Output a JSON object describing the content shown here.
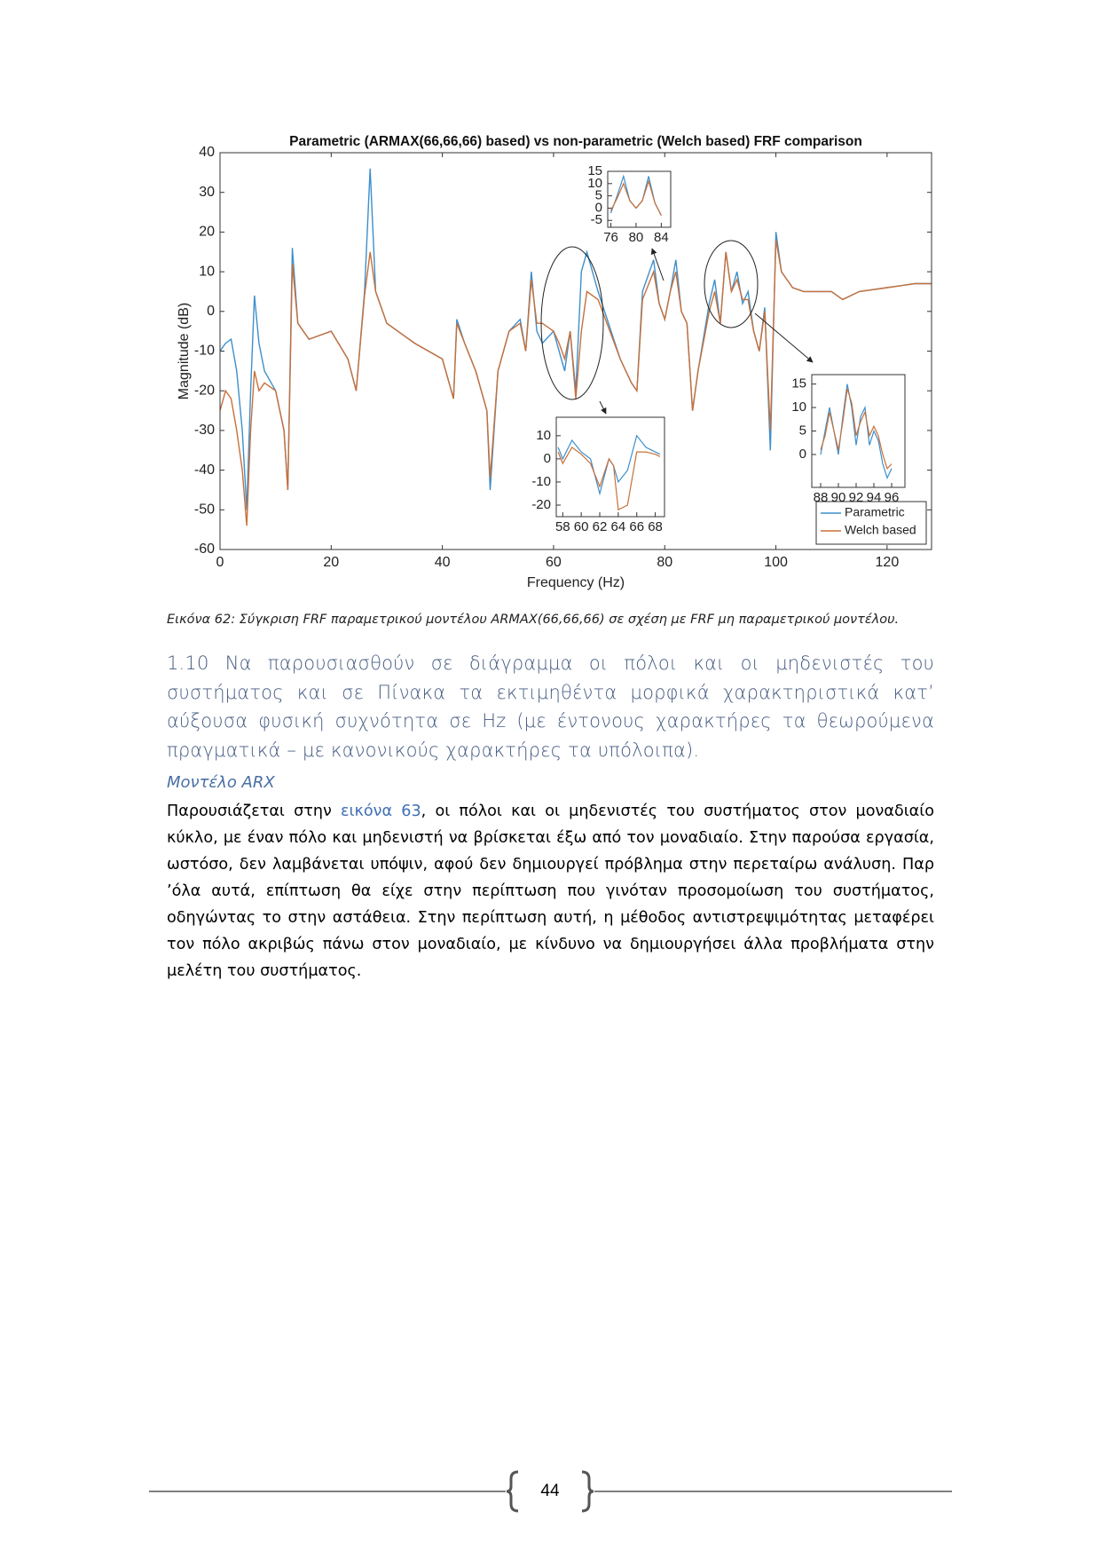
{
  "chart_data": [
    {
      "type": "line",
      "title": "Parametric (ARMAX(66,66,66) based) vs non-parametric (Welch based) FRF comparison",
      "x_label": "Frequency (Hz)",
      "y_label": "Magnitude (dB)",
      "x": [
        0,
        1,
        2,
        3,
        4,
        4.8,
        5.5,
        6.2,
        7,
        8,
        10,
        11.5,
        12.2,
        13,
        14,
        16,
        20,
        23,
        24.5,
        26,
        27,
        28,
        30,
        35,
        40,
        42,
        42.6,
        44,
        46,
        48,
        48.6,
        50,
        52,
        54,
        55,
        56,
        57,
        58,
        60,
        61,
        62,
        63,
        64,
        65,
        66,
        68,
        72,
        74,
        75,
        76,
        78,
        79,
        80,
        81,
        82,
        83,
        84,
        85,
        86,
        88,
        89,
        90,
        91,
        92,
        93,
        94,
        95,
        96,
        97,
        98,
        99,
        100,
        101,
        103,
        105,
        110,
        112,
        115,
        120,
        125,
        128
      ],
      "series": [
        {
          "name": "Parametric",
          "color": "#3d8fcc",
          "values": [
            -10,
            -8,
            -7,
            -15,
            -30,
            -50,
            -20,
            4,
            -8,
            -15,
            -20,
            -30,
            -45,
            16,
            -3,
            -7,
            -5,
            -12,
            -20,
            5,
            36,
            5,
            -3,
            -8,
            -12,
            -22,
            -2,
            -8,
            -15,
            -25,
            -45,
            -15,
            -5,
            -2,
            -10,
            10,
            -5,
            -8,
            -5,
            -10,
            -15,
            -5,
            -20,
            10,
            15,
            5,
            -12,
            -18,
            -20,
            5,
            13,
            2,
            -2,
            5,
            13,
            0,
            -3,
            -25,
            -15,
            2,
            8,
            -3,
            15,
            5,
            10,
            2,
            5,
            -5,
            -10,
            1,
            -35,
            20,
            10,
            6,
            5,
            5,
            3,
            5,
            6,
            7,
            7
          ]
        },
        {
          "name": "Welch based",
          "color": "#c8703a",
          "values": [
            -25,
            -20,
            -22,
            -30,
            -40,
            -54,
            -30,
            -15,
            -20,
            -18,
            -20,
            -30,
            -45,
            12,
            -3,
            -7,
            -5,
            -12,
            -20,
            4,
            15,
            5,
            -3,
            -8,
            -12,
            -22,
            -3,
            -8,
            -15,
            -25,
            -42,
            -15,
            -5,
            -3,
            -10,
            8,
            -3,
            -3,
            -5,
            -8,
            -12,
            -5,
            -22,
            -5,
            5,
            3,
            -12,
            -18,
            -20,
            3,
            10,
            2,
            -2,
            5,
            10,
            0,
            -3,
            -25,
            -15,
            0,
            5,
            -3,
            15,
            5,
            8,
            3,
            3,
            -5,
            -10,
            0,
            -30,
            18,
            10,
            6,
            5,
            5,
            3,
            5,
            6,
            7,
            7
          ]
        }
      ],
      "xlim": [
        0,
        128
      ],
      "ylim": [
        -60,
        40
      ],
      "xticks": [
        0,
        20,
        40,
        60,
        80,
        100,
        120
      ],
      "yticks": [
        -60,
        -50,
        -40,
        -30,
        -20,
        -10,
        0,
        10,
        20,
        30,
        40
      ],
      "legend": "lower right"
    },
    {
      "type": "line",
      "x": [
        76,
        77,
        78,
        79,
        80,
        81,
        82,
        83,
        84
      ],
      "series": [
        {
          "color": "#3d8fcc",
          "values": [
            -2,
            5,
            13,
            3,
            0,
            3,
            13,
            2,
            -3
          ]
        },
        {
          "color": "#c8703a",
          "values": [
            -1,
            4,
            10,
            3,
            0,
            3,
            11,
            2,
            -3
          ]
        }
      ],
      "xlim": [
        75.5,
        85.5
      ],
      "ylim": [
        -7.8,
        15
      ],
      "xticks": [
        76,
        80,
        84
      ],
      "yticks": [
        -5,
        0,
        5,
        10,
        15
      ]
    },
    {
      "type": "line",
      "x": [
        57.5,
        58,
        59,
        60,
        61,
        62,
        63,
        63.5,
        64,
        65,
        66,
        67,
        68,
        68.5
      ],
      "series": [
        {
          "color": "#3d8fcc",
          "values": [
            5,
            0,
            8,
            3,
            0,
            -15,
            0,
            -3,
            -10,
            -5,
            10,
            5,
            3,
            2
          ]
        },
        {
          "color": "#c8703a",
          "values": [
            3,
            -2,
            5,
            2,
            -2,
            -12,
            0,
            -3,
            -22,
            -20,
            3,
            3,
            2,
            1
          ]
        }
      ],
      "xlim": [
        57.3,
        69
      ],
      "ylim": [
        -25,
        18
      ],
      "xticks": [
        58,
        60,
        62,
        64,
        66,
        68
      ],
      "yticks": [
        -20,
        -10,
        0,
        10
      ]
    },
    {
      "type": "line",
      "x": [
        88,
        88.5,
        89,
        89.5,
        90,
        90.5,
        91,
        91.5,
        92,
        92.5,
        93,
        93.5,
        94,
        94.5,
        95,
        95.5,
        96
      ],
      "series": [
        {
          "color": "#3d8fcc",
          "values": [
            0,
            5,
            10,
            5,
            0,
            8,
            15,
            10,
            2,
            8,
            10,
            2,
            5,
            3,
            -2,
            -5,
            -3
          ]
        },
        {
          "color": "#c8703a",
          "values": [
            1,
            4,
            9,
            5,
            1,
            7,
            14,
            11,
            4,
            7,
            9,
            4,
            6,
            4,
            0,
            -3,
            -2
          ]
        }
      ],
      "xlim": [
        87,
        97.5
      ],
      "ylim": [
        -7,
        17
      ],
      "xticks": [
        88,
        90,
        92,
        94,
        96
      ],
      "yticks": [
        0,
        5,
        10,
        15
      ]
    }
  ],
  "caption": "Εικόνα 62: Σύγκριση FRF παραμετρικού μοντέλου ARMAX(66,66,66) σε σχέση με FRF μη παραμετρικού μοντέλου.",
  "heading": "1.10  Να παρουσιασθούν σε διάγραμμα οι πόλοι και οι μηδενιστές του συστήματος και σε Πίνακα τα εκτιμηθέντα μορφικά χαρακτηριστικά κατ’ αύξουσα φυσική συχνότητα σε Hz (με έντονους χαρακτήρες τα θεωρούμενα πραγματικά – με κανονικούς χαρακτήρες τα υπόλοιπα).",
  "subheading": "Μοντέλο ARX",
  "paragraph": {
    "before": "Παρουσιάζεται στην ",
    "link": "εικόνα 63",
    "after": ", οι πόλοι και οι μηδενιστές του συστήματος στον μοναδιαίο κύκλο, με έναν πόλο και μηδενιστή να βρίσκεται έξω από τον μοναδιαίο. Στην παρούσα εργασία, ωστόσο, δεν λαμβάνεται υπόψιν, αφού δεν δημιουργεί πρόβλημα στην περεταίρω ανάλυση. Παρ ’όλα αυτά, επίπτωση θα είχε στην περίπτωση που γινόταν προσομοίωση του συστήματος, οδηγώντας το στην αστάθεια. Στην περίπτωση αυτή, η μέθοδος αντιστρεψιμότητας μεταφέρει τον πόλο ακριβώς πάνω στον μοναδιαίο, με κίνδυνο να δημιουργήσει άλλα προβλήματα στην μελέτη του συστήματος."
  },
  "page_number": "44"
}
